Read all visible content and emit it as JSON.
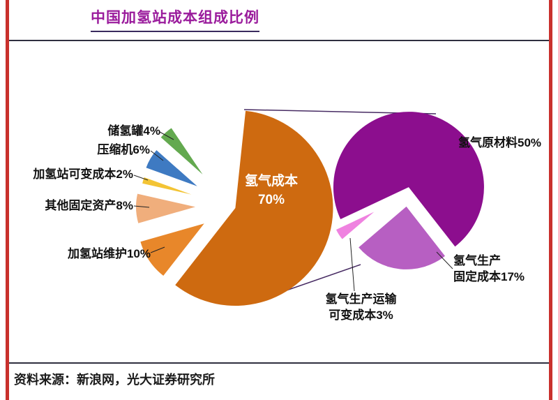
{
  "page": {
    "title": "中国加氢站成本组成比例",
    "source": "资料来源：新浪网，光大证券研究所",
    "title_color": "#9A1B9C",
    "frame_red": "#C9302C"
  },
  "chart_data": {
    "type": "pie",
    "variant": "pie-of-pie-exploded",
    "title": "中国加氢站成本组成比例",
    "unit": "%",
    "legend_position": "callout-labels",
    "source": "资料来源：新浪网，光大证券研究所",
    "main_pie": {
      "slices": [
        {
          "label": "氢气成本",
          "value": 70,
          "color": "#CE6A10"
        },
        {
          "label": "加氢站维护",
          "value": 10,
          "color": "#E8872A"
        },
        {
          "label": "其他固定资产",
          "value": 8,
          "color": "#F0AE7C"
        },
        {
          "label": "加氢站可变成本",
          "value": 2,
          "color": "#F3C435"
        },
        {
          "label": "压缩机",
          "value": 6,
          "color": "#3E7AC2"
        },
        {
          "label": "储氢罐",
          "value": 4,
          "color": "#63A94F"
        }
      ]
    },
    "detail_pie": {
      "detail_of": "氢气成本 70%",
      "slices": [
        {
          "label": "氢气原材料",
          "value": 50,
          "color": "#8C0E8E"
        },
        {
          "label": "氢气生产固定成本",
          "value": 17,
          "color": "#B75FC2"
        },
        {
          "label": "氢气生产运输可变成本",
          "value": 3,
          "color": "#EF82E0"
        }
      ]
    }
  },
  "labels": {
    "tank": "储氢罐4%",
    "compressor": "压缩机6%",
    "station_variable": "加氢站可变成本2%",
    "other_fixed": "其他固定资产8%",
    "maintenance": "加氢站维护10%",
    "inner_line1": "氢气成本",
    "inner_line2": "70%",
    "raw_material": "氢气原材料50%",
    "prod_fixed_line1": "氢气生产",
    "prod_fixed_line2": "固定成本17%",
    "transport_line1": "氢气生产运输",
    "transport_line2": "可变成本3%"
  }
}
